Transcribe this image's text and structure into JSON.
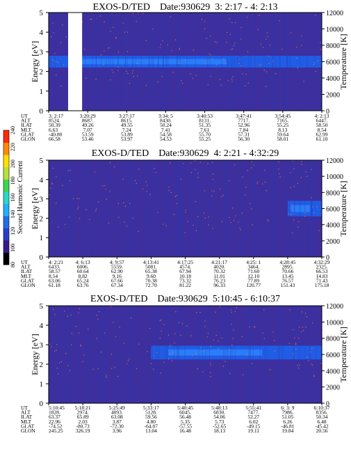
{
  "panels": [
    {
      "title": "EXOS-D/TED",
      "date_label": "Date:930629",
      "time_range": "3: 2:17 - 4: 2:13",
      "ylabel_left": "Energy [eV]",
      "ylabel_right": "Temperature [K]",
      "yticks_left": [
        "0",
        "1",
        "2",
        "3",
        "4",
        "5"
      ],
      "yticks_right": [
        "0",
        "2000",
        "4000",
        "6000",
        "8000",
        "10000",
        "12000"
      ],
      "ephem_labels": [
        "UT",
        "ALT",
        "ILAT",
        "MLT",
        "GLAT",
        "GLON"
      ],
      "ephem_columns": [
        [
          "3: 2:17",
          "8524.",
          "50.39",
          "6.63",
          "-40.80",
          "66.58"
        ],
        [
          "3:20:29",
          "8687.",
          "49.26",
          "7.07",
          "53.59",
          "53.46"
        ],
        [
          "3:27:17",
          "8615.",
          "49.55",
          "7.24",
          "53.89",
          "53.97"
        ],
        [
          "3:34: 5",
          "8430.",
          "50.24",
          "7.41",
          "54.58",
          "54.53"
        ],
        [
          "3:40:53",
          "8131.",
          "51.35",
          "7.61",
          "55.70",
          "55.25"
        ],
        [
          "3:47:41",
          "7717.",
          "52.96",
          "7.84",
          "57.31",
          "56.30"
        ],
        [
          "3:54:45",
          "7165.",
          "55.25",
          "8.13",
          "59.64",
          "58.01"
        ],
        [
          "4: 2:13",
          "6447.",
          "58.50",
          "8.54",
          "62.99",
          "61.10"
        ]
      ]
    },
    {
      "title": "EXOS-D/TED",
      "date_label": "Date:930629",
      "time_range": "4: 2:21 - 4:32:29",
      "ylabel_left": "Energy [eV]",
      "ylabel_right": "Temperature [K]",
      "yticks_left": [
        "0",
        "1",
        "2",
        "3",
        "4",
        "5"
      ],
      "yticks_right": [
        "0",
        "2000",
        "4000",
        "6000",
        "8000",
        "10000",
        "12000"
      ],
      "ephem_labels": [
        "UT",
        "ALT",
        "ILAT",
        "MLT",
        "GLAT",
        "GLON"
      ],
      "ephem_columns": [
        [
          "4: 2:21",
          "6433.",
          "58.57",
          "8.54",
          "63.06",
          "61.18"
        ],
        [
          "4: 6:13",
          "6006.",
          "60.64",
          "8.82",
          "65.24",
          "63.76"
        ],
        [
          "4: 9:57",
          "5559.",
          "62.90",
          "9.16",
          "67.66",
          "67.34"
        ],
        [
          "4:13:41",
          "5081.",
          "65.38",
          "9.60",
          "70.38",
          "72.70"
        ],
        [
          "4:17:25",
          "4574.",
          "67.94",
          "10.18",
          "73.32",
          "81.22"
        ],
        [
          "4:21:17",
          "4020.",
          "70.32",
          "11.01",
          "76.23",
          "96.33"
        ],
        [
          "4:25: 1",
          "3464.",
          "71.60",
          "12.10",
          "77.89",
          "120.77"
        ],
        [
          "4:28:45",
          "2895.",
          "70.66",
          "13.45",
          "76.57",
          "151.43"
        ],
        [
          "4:32:29",
          "2325.",
          "66.53",
          "14.83",
          "71.43",
          "175.18"
        ]
      ]
    },
    {
      "title": "EXOS-D/TED",
      "date_label": "Date:930629",
      "time_range": "5:10:45 - 6:10:37",
      "ylabel_left": "Energy [eV]",
      "ylabel_right": "Temperature [K]",
      "yticks_left": [
        "0",
        "1",
        "2",
        "3",
        "4",
        "5"
      ],
      "yticks_right": [
        "0",
        "2000",
        "4000",
        "6000",
        "8000",
        "10000",
        "12000"
      ],
      "ephem_labels": [
        "UT",
        "ALT",
        "ILAT",
        "MLT",
        "GLAT",
        "GLON"
      ],
      "ephem_columns": [
        [
          "5:10:45",
          "1828.",
          "63.37",
          "22.96",
          "-74.52",
          "245.25"
        ],
        [
          "5:18:21",
          "2974.",
          "65.89",
          "2.03",
          "-80.73",
          "326.19"
        ],
        [
          "5:25:49",
          "4093.",
          "63.08",
          "3.87",
          "-72.30",
          "3.96"
        ],
        [
          "5:33:17",
          "5128.",
          "59.56",
          "4.80",
          "-64.07",
          "13.04"
        ],
        [
          "5:40:45",
          "6045.",
          "56.48",
          "5.35",
          "-57.55",
          "16.48"
        ],
        [
          "5:48:13",
          "6830.",
          "54.06",
          "5.73",
          "-52.65",
          "18.13"
        ],
        [
          "5:55:41",
          "7477.",
          "52.27",
          "6.02",
          "-49.15",
          "19.11"
        ],
        [
          "6: 3: 9",
          "7986.",
          "51.05",
          "6.26",
          "-46.81",
          "19.84"
        ],
        [
          "6:10:37",
          "8356.",
          "50.34",
          "6.48",
          "-45.42",
          "20.56"
        ]
      ]
    }
  ],
  "colorbar": {
    "label": "Second Harmonic Current",
    "ticks": [
      "80",
      "100",
      "120",
      "140",
      "160",
      "180",
      "200",
      "220",
      "240"
    ]
  },
  "chart_data": [
    {
      "type": "heatmap",
      "title": "EXOS-D/TED Date:930629 3: 2:17 - 4: 2:13",
      "xlabel": "UT",
      "x": [
        "3: 2:17",
        "3:20:29",
        "3:27:17",
        "3:34: 5",
        "3:40:53",
        "3:47:41",
        "3:54:45",
        "4: 2:13"
      ],
      "ylabel": "Energy [eV]",
      "ylim": [
        0,
        5
      ],
      "ylabel_right": "Temperature [K]",
      "ylim_right": [
        0,
        12000
      ],
      "data_gap": [
        "3: 2:17",
        "3:20:29"
      ],
      "dominant_band": {
        "center_ev": 2.5,
        "halfwidth_ev": 0.3
      }
    },
    {
      "type": "heatmap",
      "title": "EXOS-D/TED Date:930629 4: 2:21 - 4:32:29",
      "xlabel": "UT",
      "x": [
        "4: 2:21",
        "4: 6:13",
        "4: 9:57",
        "4:13:41",
        "4:17:25",
        "4:21:17",
        "4:25: 1",
        "4:28:45",
        "4:32:29"
      ],
      "ylabel": "Energy [eV]",
      "ylim": [
        0,
        5
      ],
      "ylabel_right": "Temperature [K]",
      "ylim_right": [
        0,
        12000
      ],
      "dominant_band": {
        "center_ev": 2.5,
        "halfwidth_ev": 0.4,
        "start": "4:28:45"
      }
    },
    {
      "type": "heatmap",
      "title": "EXOS-D/TED Date:930629 5:10:45 - 6:10:37",
      "xlabel": "UT",
      "x": [
        "5:10:45",
        "5:18:21",
        "5:25:49",
        "5:33:17",
        "5:40:45",
        "5:48:13",
        "5:55:41",
        "6: 3: 9",
        "6:10:37"
      ],
      "ylabel": "Energy [eV]",
      "ylim": [
        0,
        5
      ],
      "ylabel_right": "Temperature [K]",
      "ylim_right": [
        0,
        12000
      ],
      "dominant_band": {
        "center_ev": 2.6,
        "halfwidth_ev": 0.35,
        "start": "5:33:17"
      }
    }
  ],
  "colors": {
    "background": "#3d2f9e",
    "band": "#1f5de6",
    "band_core": "#2f8cff",
    "speckle": "#ff7a2a",
    "gap": "#ffffff"
  }
}
